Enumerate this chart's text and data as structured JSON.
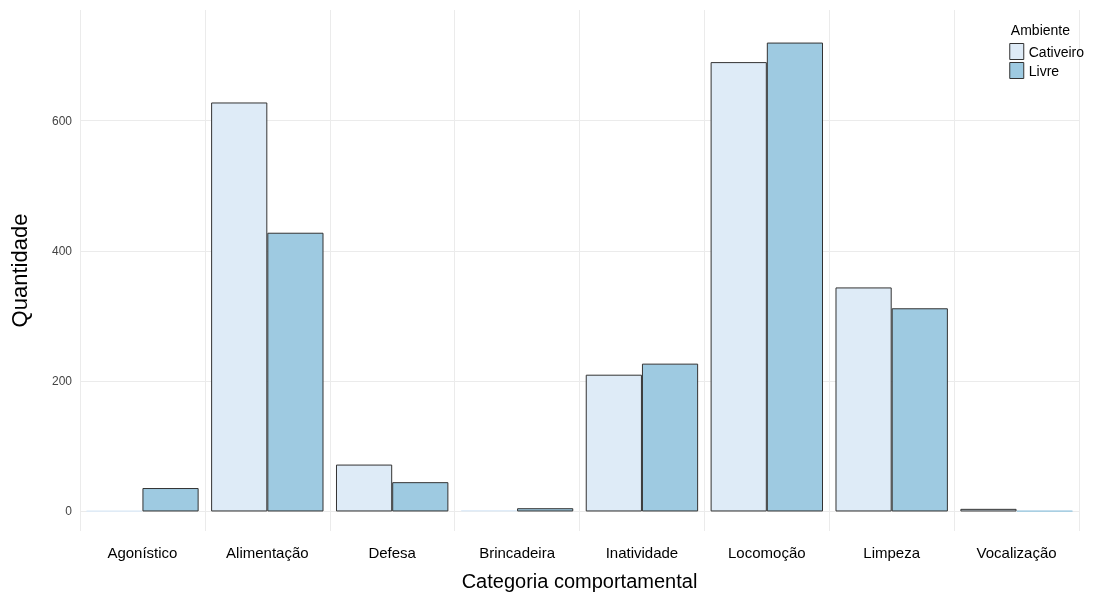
{
  "chart_data": {
    "type": "bar",
    "xlabel": "Categoria comportamental",
    "ylabel": "Quantidade",
    "legend_title": "Ambiente",
    "categories": [
      "Agonístico",
      "Alimentação",
      "Defesa",
      "Brincadeira",
      "Inatividade",
      "Locomoção",
      "Limpeza",
      "Vocalização"
    ],
    "series": [
      {
        "name": "Cativeiro",
        "color": "#deebf7",
        "values": [
          1,
          628,
          72,
          2,
          210,
          690,
          344,
          4
        ]
      },
      {
        "name": "Livre",
        "color": "#9ecae1",
        "values": [
          36,
          428,
          45,
          5,
          227,
          720,
          312,
          1
        ]
      }
    ],
    "ylim": [
      -30,
      770
    ],
    "yticks": [
      0,
      200,
      400,
      600
    ],
    "grid": true,
    "legend": "top right"
  }
}
